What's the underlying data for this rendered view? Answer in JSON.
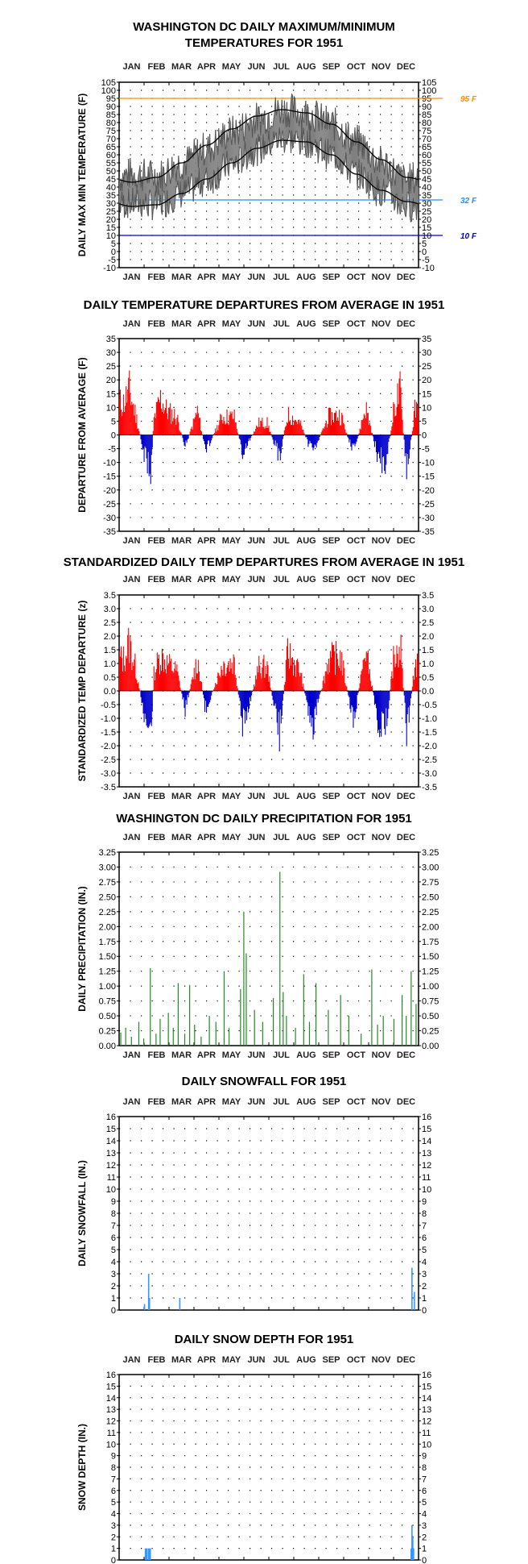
{
  "colors": {
    "tmax_tmin": "#808080",
    "normal_lines": "#000000",
    "positive": "#ff0000",
    "negative": "#0000cc",
    "precip": "#228b22",
    "snow": "#3399ff",
    "ref_95": "#ff8c00",
    "ref_32": "#1e90ff",
    "ref_10": "#0000cc"
  },
  "months": [
    "JAN",
    "FEB",
    "MAR",
    "APR",
    "MAY",
    "JUN",
    "JUL",
    "AUG",
    "SEP",
    "OCT",
    "NOV",
    "DEC"
  ],
  "chart_data": [
    {
      "type": "line",
      "id": "temps",
      "title": "WASHINGTON DC DAILY MAXIMUM/MINIMUM",
      "title2": "TEMPERATURES FOR 1951",
      "ylabel": "DAILY MAX MIN TEMPERATURE (F)",
      "ylim": [
        -10,
        105
      ],
      "ytick_step": 5,
      "grid": true,
      "reference_lines": [
        {
          "value": 95,
          "label": "95 F",
          "color_key": "ref_95"
        },
        {
          "value": 32,
          "label": "32 F",
          "color_key": "ref_32"
        },
        {
          "value": 10,
          "label": "10 F",
          "color_key": "ref_10"
        }
      ],
      "series": [
        {
          "name": "",
          "kind": "max",
          "values_by_month_mean": [
            48,
            47,
            55,
            64,
            74,
            82,
            88,
            86,
            79,
            68,
            55,
            44
          ]
        },
        {
          "name": "",
          "kind": "min",
          "values_by_month_mean": [
            30,
            29,
            36,
            44,
            54,
            63,
            70,
            68,
            60,
            48,
            37,
            28
          ]
        }
      ],
      "normal_high": [
        43,
        46,
        55,
        66,
        76,
        84,
        88,
        86,
        79,
        68,
        57,
        46
      ],
      "normal_low": [
        28,
        29,
        36,
        45,
        55,
        64,
        69,
        68,
        60,
        48,
        38,
        31
      ]
    },
    {
      "type": "bar",
      "id": "departures",
      "title": "DAILY TEMPERATURE DEPARTURES FROM AVERAGE IN 1951",
      "ylabel": "DEPARTURE FROM AVERAGE (F)",
      "ylim": [
        -35,
        35
      ],
      "ytick_step": 5,
      "grid": true,
      "daily_sample": [
        {
          "day": 5,
          "value": 16
        },
        {
          "day": 12,
          "value": 22
        },
        {
          "day": 20,
          "value": 10
        },
        {
          "day": 30,
          "value": -10
        },
        {
          "day": 38,
          "value": -18
        },
        {
          "day": 42,
          "value": 8
        },
        {
          "day": 50,
          "value": 18
        },
        {
          "day": 58,
          "value": 12
        },
        {
          "day": 70,
          "value": 9
        },
        {
          "day": 80,
          "value": -6
        },
        {
          "day": 95,
          "value": 12
        },
        {
          "day": 105,
          "value": -8
        },
        {
          "day": 125,
          "value": 9
        },
        {
          "day": 140,
          "value": 9
        },
        {
          "day": 150,
          "value": -9
        },
        {
          "day": 170,
          "value": 6
        },
        {
          "day": 180,
          "value": 6
        },
        {
          "day": 195,
          "value": -11
        },
        {
          "day": 205,
          "value": 10
        },
        {
          "day": 220,
          "value": 6
        },
        {
          "day": 235,
          "value": -9
        },
        {
          "day": 255,
          "value": 9
        },
        {
          "day": 270,
          "value": 10
        },
        {
          "day": 285,
          "value": -10
        },
        {
          "day": 300,
          "value": 14
        },
        {
          "day": 315,
          "value": -11
        },
        {
          "day": 325,
          "value": -15
        },
        {
          "day": 335,
          "value": 14
        },
        {
          "day": 342,
          "value": 22
        },
        {
          "day": 350,
          "value": -20
        },
        {
          "day": 360,
          "value": 12
        }
      ]
    },
    {
      "type": "bar",
      "id": "standardized",
      "title": "STANDARDIZED DAILY TEMP DEPARTURES FROM AVERAGE IN 1951",
      "ylabel": "STANDARDIZED TEMP DEPARTURE (z)",
      "ylim": [
        -3.5,
        3.5
      ],
      "ytick_step": 0.5,
      "grid": true,
      "daily_sample": [
        {
          "day": 5,
          "value": 1.6
        },
        {
          "day": 12,
          "value": 2.4
        },
        {
          "day": 20,
          "value": 1.1
        },
        {
          "day": 30,
          "value": -1.1
        },
        {
          "day": 38,
          "value": -2.3
        },
        {
          "day": 42,
          "value": 0.9
        },
        {
          "day": 50,
          "value": 1.8
        },
        {
          "day": 58,
          "value": 1.4
        },
        {
          "day": 70,
          "value": 1.0
        },
        {
          "day": 80,
          "value": -0.9
        },
        {
          "day": 95,
          "value": 1.6
        },
        {
          "day": 105,
          "value": -1.0
        },
        {
          "day": 125,
          "value": 1.3
        },
        {
          "day": 140,
          "value": 1.5
        },
        {
          "day": 150,
          "value": -1.9
        },
        {
          "day": 170,
          "value": 1.2
        },
        {
          "day": 180,
          "value": 1.2
        },
        {
          "day": 195,
          "value": -2.2
        },
        {
          "day": 205,
          "value": 1.9
        },
        {
          "day": 220,
          "value": 1.0
        },
        {
          "day": 235,
          "value": -1.8
        },
        {
          "day": 255,
          "value": 1.6
        },
        {
          "day": 270,
          "value": 1.7
        },
        {
          "day": 285,
          "value": -1.6
        },
        {
          "day": 300,
          "value": 2.1
        },
        {
          "day": 315,
          "value": -1.5
        },
        {
          "day": 325,
          "value": -1.8
        },
        {
          "day": 335,
          "value": 1.9
        },
        {
          "day": 342,
          "value": 2.6
        },
        {
          "day": 350,
          "value": -2.2
        },
        {
          "day": 360,
          "value": 1.3
        }
      ]
    },
    {
      "type": "bar",
      "id": "precip",
      "title": "WASHINGTON DC DAILY PRECIPITATION FOR 1951",
      "ylabel": "DAILY PRECIPITATION (IN.)",
      "ylim": [
        0,
        3.25
      ],
      "ytick_step": 0.25,
      "grid": true,
      "daily": [
        {
          "day": 2,
          "value": 0.22
        },
        {
          "day": 8,
          "value": 0.3
        },
        {
          "day": 15,
          "value": 0.15
        },
        {
          "day": 24,
          "value": 0.4
        },
        {
          "day": 30,
          "value": 0.12
        },
        {
          "day": 38,
          "value": 1.3
        },
        {
          "day": 45,
          "value": 0.2
        },
        {
          "day": 50,
          "value": 0.45
        },
        {
          "day": 60,
          "value": 0.55
        },
        {
          "day": 66,
          "value": 0.3
        },
        {
          "day": 72,
          "value": 1.05
        },
        {
          "day": 80,
          "value": 0.2
        },
        {
          "day": 86,
          "value": 1.02
        },
        {
          "day": 92,
          "value": 0.35
        },
        {
          "day": 100,
          "value": 0.15
        },
        {
          "day": 110,
          "value": 0.5
        },
        {
          "day": 118,
          "value": 0.4
        },
        {
          "day": 128,
          "value": 1.25
        },
        {
          "day": 134,
          "value": 0.3
        },
        {
          "day": 148,
          "value": 0.95
        },
        {
          "day": 152,
          "value": 2.25
        },
        {
          "day": 155,
          "value": 1.55
        },
        {
          "day": 165,
          "value": 0.6
        },
        {
          "day": 175,
          "value": 0.4
        },
        {
          "day": 188,
          "value": 0.8
        },
        {
          "day": 196,
          "value": 2.92
        },
        {
          "day": 200,
          "value": 0.9
        },
        {
          "day": 204,
          "value": 0.5
        },
        {
          "day": 215,
          "value": 0.3
        },
        {
          "day": 225,
          "value": 1.2
        },
        {
          "day": 232,
          "value": 0.4
        },
        {
          "day": 240,
          "value": 1.05
        },
        {
          "day": 255,
          "value": 0.6
        },
        {
          "day": 270,
          "value": 0.85
        },
        {
          "day": 280,
          "value": 0.5
        },
        {
          "day": 295,
          "value": 0.2
        },
        {
          "day": 308,
          "value": 1.28
        },
        {
          "day": 315,
          "value": 0.35
        },
        {
          "day": 322,
          "value": 0.5
        },
        {
          "day": 335,
          "value": 0.45
        },
        {
          "day": 345,
          "value": 0.85
        },
        {
          "day": 350,
          "value": 0.5
        },
        {
          "day": 356,
          "value": 1.25
        },
        {
          "day": 362,
          "value": 0.7
        }
      ]
    },
    {
      "type": "bar",
      "id": "snowfall",
      "title": "DAILY SNOWFALL FOR 1951",
      "ylabel": "DAILY SNOWFALL (IN.)",
      "ylim": [
        0,
        16
      ],
      "ytick_step": 1,
      "grid": true,
      "daily": [
        {
          "day": 31,
          "value": 0.5
        },
        {
          "day": 36,
          "value": 3.0
        },
        {
          "day": 37,
          "value": 1.0
        },
        {
          "day": 74,
          "value": 1.0
        },
        {
          "day": 357,
          "value": 3.5
        },
        {
          "day": 360,
          "value": 1.5
        }
      ]
    },
    {
      "type": "bar",
      "id": "snowdepth",
      "title": "DAILY SNOW DEPTH FOR 1951",
      "ylabel": "SNOW DEPTH (IN.)",
      "ylim": [
        0,
        16
      ],
      "ytick_step": 1,
      "grid": true,
      "daily": [
        {
          "day": 32,
          "value": 1
        },
        {
          "day": 33,
          "value": 1
        },
        {
          "day": 34,
          "value": 1
        },
        {
          "day": 36,
          "value": 1
        },
        {
          "day": 37,
          "value": 1
        },
        {
          "day": 38,
          "value": 1
        },
        {
          "day": 356,
          "value": 1
        },
        {
          "day": 357,
          "value": 3
        },
        {
          "day": 358,
          "value": 2
        },
        {
          "day": 359,
          "value": 1
        }
      ]
    }
  ]
}
